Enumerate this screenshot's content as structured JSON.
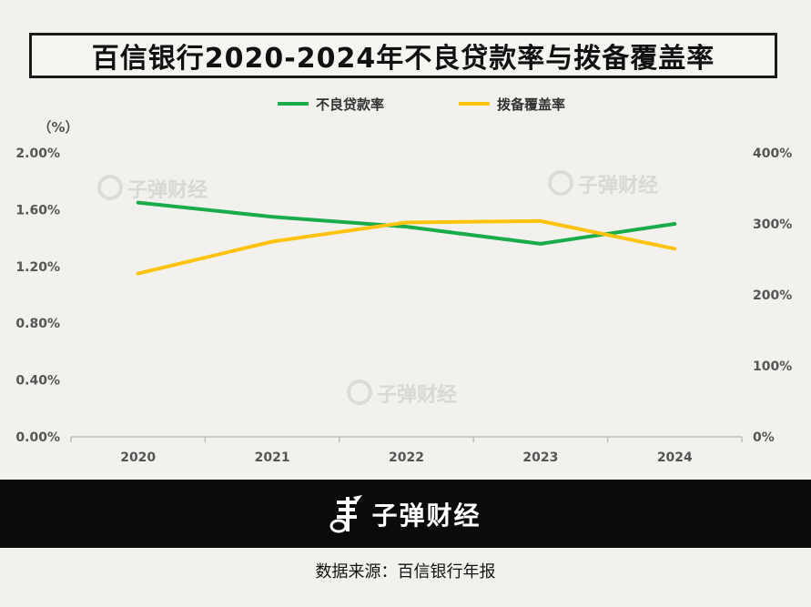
{
  "title": "百信银行2020-2024年不良贷款率与拨备覆盖率",
  "watermark_text": "子弹财经",
  "footer": {
    "brand": "子弹财经",
    "source": "数据来源：百信银行年报"
  },
  "chart_data": {
    "type": "line",
    "categories": [
      "2020",
      "2021",
      "2022",
      "2023",
      "2024"
    ],
    "left_axis": {
      "unit_label": "（%）",
      "ylim": [
        0,
        2.0
      ],
      "ticks": [
        "0.00%",
        "0.40%",
        "0.80%",
        "1.20%",
        "1.60%",
        "2.00%"
      ]
    },
    "right_axis": {
      "ylim": [
        0,
        400
      ],
      "ticks": [
        "0%",
        "100%",
        "200%",
        "300%",
        "400%"
      ]
    },
    "series": [
      {
        "name": "不良贷款率",
        "axis": "left",
        "color": "#1aac4b",
        "values": [
          1.65,
          1.55,
          1.48,
          1.36,
          1.5
        ]
      },
      {
        "name": "拨备覆盖率",
        "axis": "right",
        "color": "#ffc20e",
        "values": [
          230,
          275,
          302,
          304,
          265
        ]
      }
    ],
    "legend_position": "top-center",
    "grid": false
  }
}
